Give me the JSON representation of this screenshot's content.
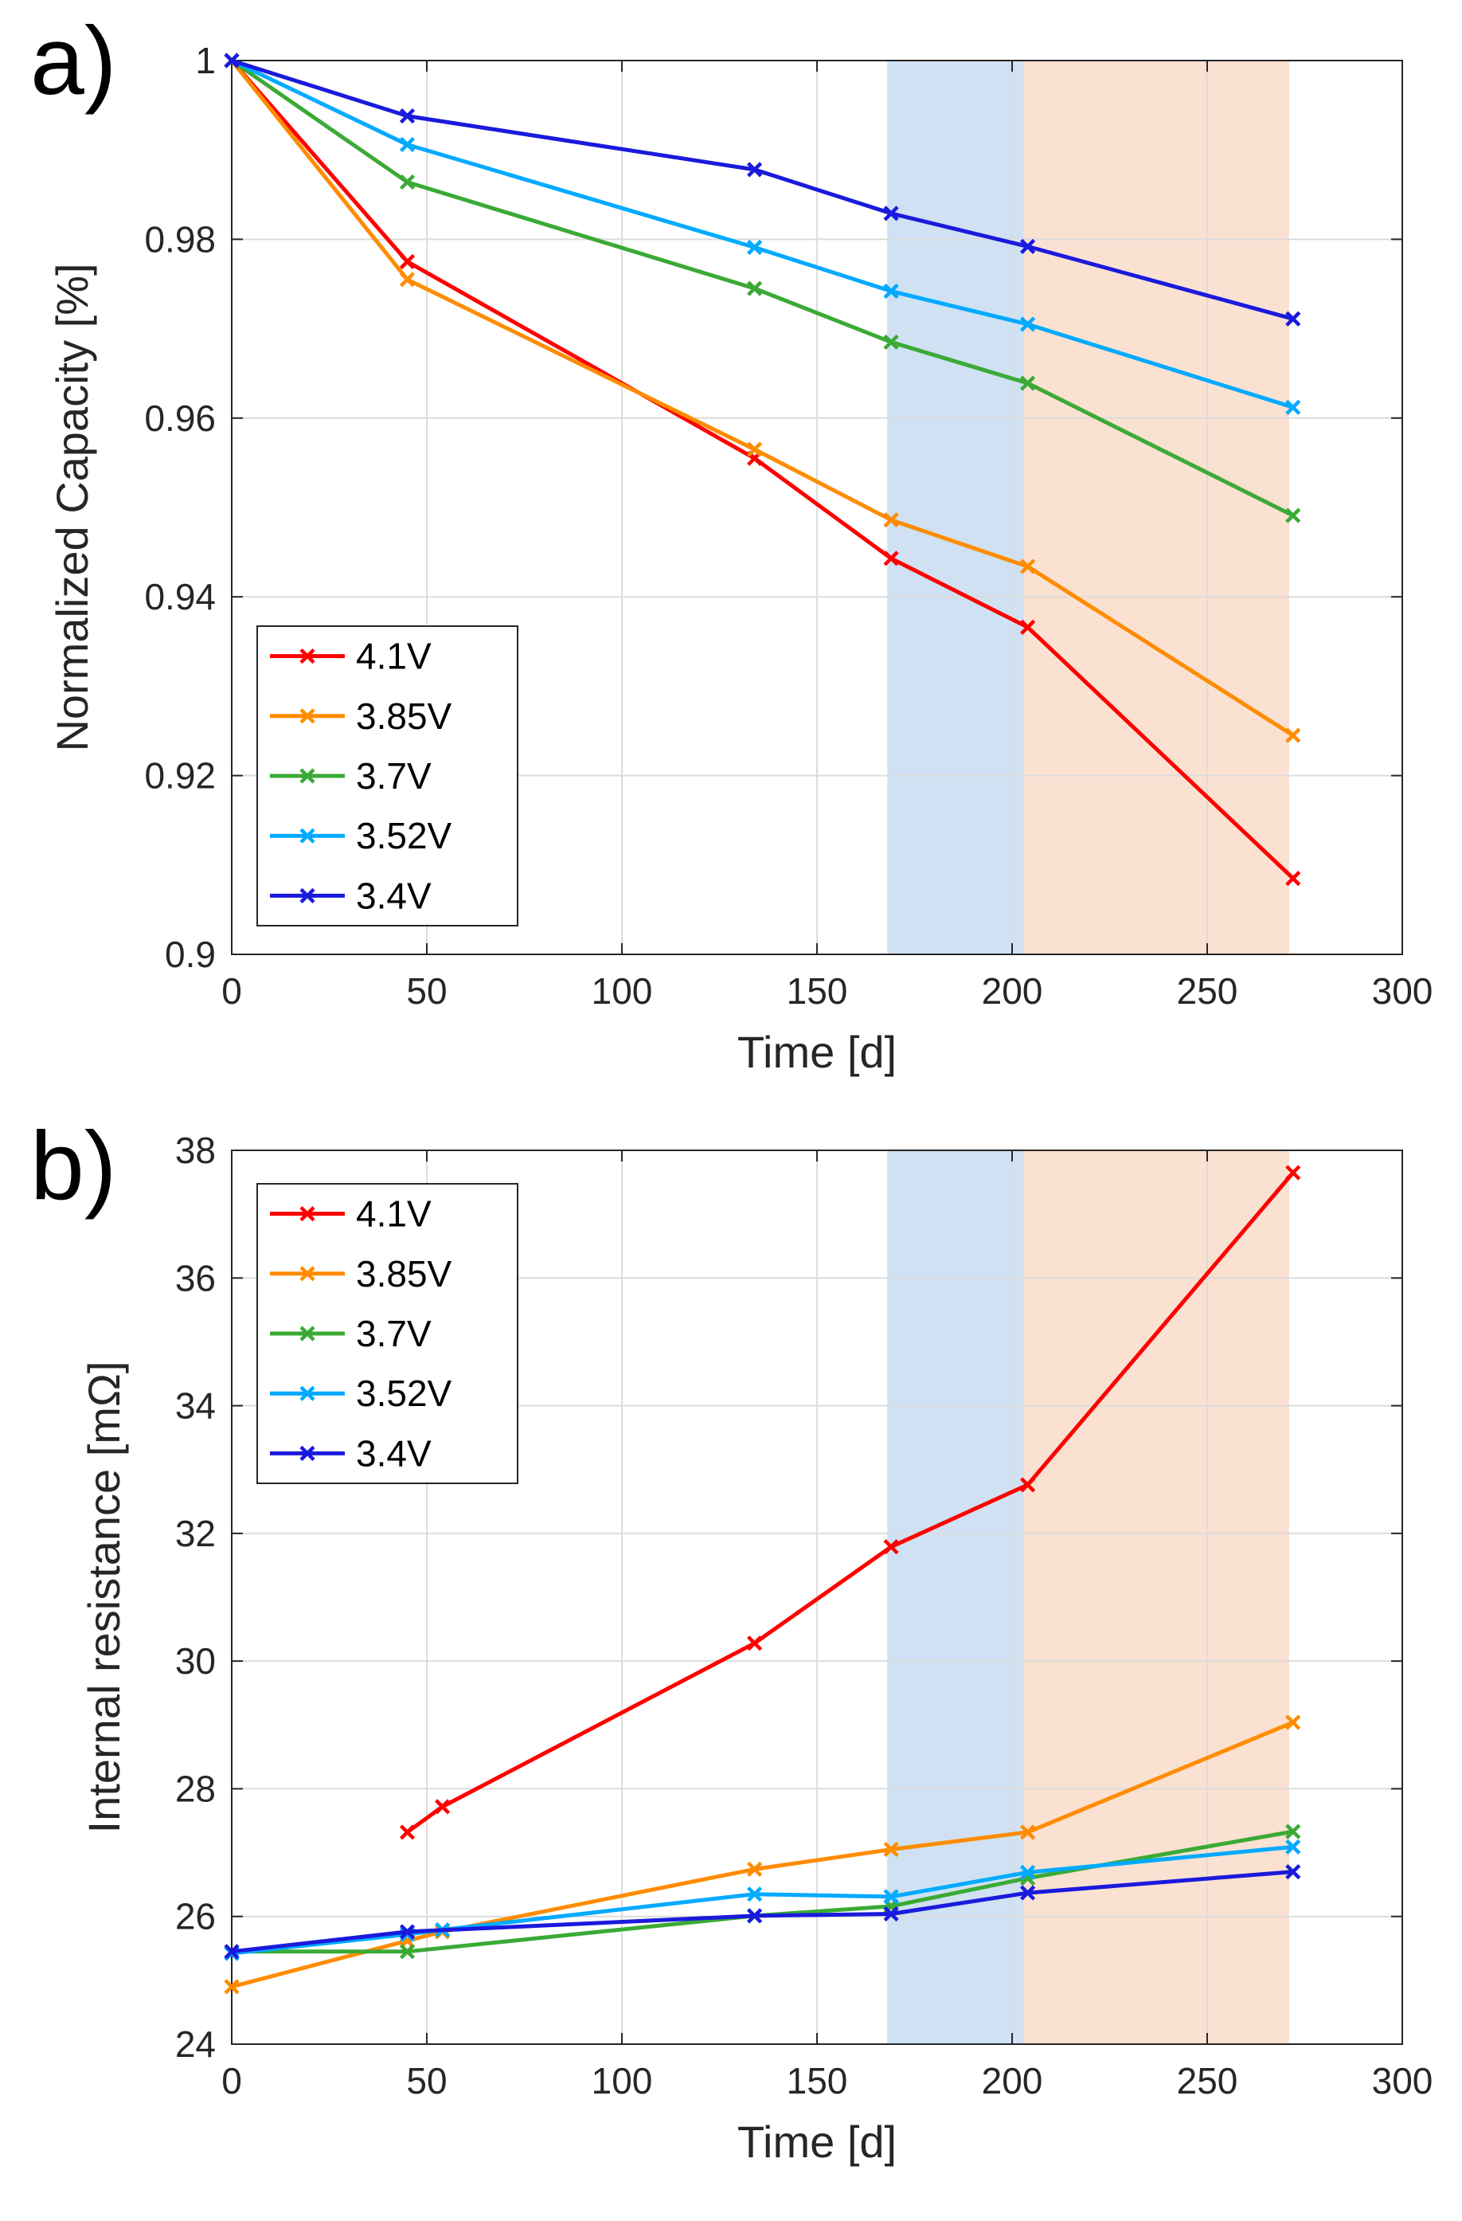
{
  "chart_data": [
    {
      "panel": "a)",
      "type": "line",
      "title": "",
      "xlabel": "Time [d]",
      "ylabel": "Normalized Capacity [%]",
      "xlim": [
        0,
        300
      ],
      "ylim": [
        0.9,
        1.0
      ],
      "xticks": [
        0,
        50,
        100,
        150,
        200,
        250,
        300
      ],
      "xtick_labels": [
        "0",
        "50",
        "100",
        "150",
        "200",
        "250",
        "300"
      ],
      "yticks": [
        0.9,
        0.92,
        0.94,
        0.96,
        0.98,
        1.0
      ],
      "ytick_labels": [
        "0.9",
        "0.92",
        "0.94",
        "0.96",
        "0.98",
        "1"
      ],
      "grid": true,
      "legend_position": "bottom-left",
      "shaded_regions": [
        {
          "x0": 168,
          "x1": 203,
          "color": "#a8c8e8"
        },
        {
          "x0": 203,
          "x1": 271,
          "color": "#f5c9ad"
        }
      ],
      "series": [
        {
          "name": "4.1V",
          "color": "#ff0000",
          "x": [
            0,
            45,
            134,
            169,
            204,
            272
          ],
          "y": [
            1.0,
            0.9775,
            0.9555,
            0.9443,
            0.9366,
            0.9085
          ]
        },
        {
          "name": "3.85V",
          "color": "#ff8c00",
          "x": [
            0,
            45,
            134,
            169,
            204,
            272
          ],
          "y": [
            1.0,
            0.9755,
            0.9565,
            0.9486,
            0.9434,
            0.9245
          ]
        },
        {
          "name": "3.7V",
          "color": "#3aaa35",
          "x": [
            0,
            45,
            134,
            169,
            204,
            272
          ],
          "y": [
            1.0,
            0.9864,
            0.9745,
            0.9685,
            0.9639,
            0.9491
          ]
        },
        {
          "name": "3.52V",
          "color": "#00aaff",
          "x": [
            0,
            45,
            134,
            169,
            204,
            272
          ],
          "y": [
            1.0,
            0.9906,
            0.9791,
            0.9742,
            0.9705,
            0.9612
          ]
        },
        {
          "name": "3.4V",
          "color": "#1a1adc",
          "x": [
            0,
            45,
            134,
            169,
            204,
            272
          ],
          "y": [
            1.0,
            0.9938,
            0.9878,
            0.9829,
            0.9792,
            0.9711
          ]
        }
      ]
    },
    {
      "panel": "b)",
      "type": "line",
      "title": "",
      "xlabel": "Time [d]",
      "ylabel": "Internal resistance [mΩ]",
      "xlim": [
        0,
        300
      ],
      "ylim": [
        24,
        38
      ],
      "xticks": [
        0,
        50,
        100,
        150,
        200,
        250,
        300
      ],
      "xtick_labels": [
        "0",
        "50",
        "100",
        "150",
        "200",
        "250",
        "300"
      ],
      "yticks": [
        24,
        26,
        28,
        30,
        32,
        34,
        36,
        38
      ],
      "ytick_labels": [
        "24",
        "26",
        "28",
        "30",
        "32",
        "34",
        "36",
        "38"
      ],
      "grid": true,
      "legend_position": "top-left",
      "shaded_regions": [
        {
          "x0": 168,
          "x1": 203,
          "color": "#a8c8e8"
        },
        {
          "x0": 203,
          "x1": 271,
          "color": "#f5c9ad"
        }
      ],
      "series": [
        {
          "name": "4.1V",
          "color": "#ff0000",
          "x": [
            45,
            54,
            134,
            169,
            204,
            272
          ],
          "y": [
            27.32,
            27.72,
            30.28,
            31.79,
            32.76,
            37.65
          ]
        },
        {
          "name": "3.85V",
          "color": "#ff8c00",
          "x": [
            0,
            45,
            54,
            134,
            169,
            204,
            272
          ],
          "y": [
            24.9,
            25.62,
            25.76,
            26.74,
            27.05,
            27.32,
            29.04
          ]
        },
        {
          "name": "3.7V",
          "color": "#3aaa35",
          "x": [
            0,
            45,
            134,
            169,
            204,
            272
          ],
          "y": [
            25.45,
            25.45,
            26.01,
            26.16,
            26.6,
            27.33
          ]
        },
        {
          "name": "3.52V",
          "color": "#00aaff",
          "x": [
            0,
            45,
            54,
            134,
            169,
            204,
            272
          ],
          "y": [
            25.42,
            25.72,
            25.79,
            26.35,
            26.31,
            26.69,
            27.09
          ]
        },
        {
          "name": "3.4V",
          "color": "#1a1adc",
          "x": [
            0,
            45,
            134,
            169,
            204,
            272
          ],
          "y": [
            25.45,
            25.76,
            26.01,
            26.04,
            26.37,
            26.7
          ]
        }
      ]
    }
  ]
}
